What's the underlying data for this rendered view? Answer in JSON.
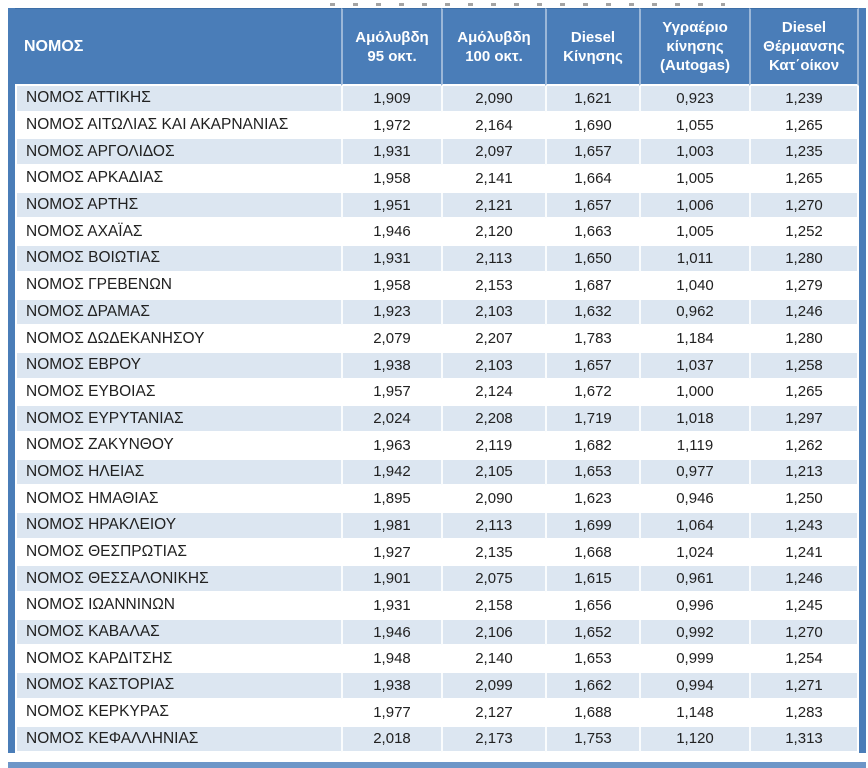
{
  "colors": {
    "header_bg": "#4a7db8",
    "row_alt_bg": "#dce6f1",
    "row_bg": "#ffffff",
    "text": "#212121",
    "header_text": "#ffffff"
  },
  "table": {
    "columns": [
      {
        "key": "nomos",
        "label": "ΝΟΜΟΣ"
      },
      {
        "key": "u95",
        "label": "Αμόλυβδη\n95 οκτ."
      },
      {
        "key": "u100",
        "label": "Αμόλυβδη\n100 οκτ."
      },
      {
        "key": "diesel",
        "label": "Diesel\nΚίνησης"
      },
      {
        "key": "autogas",
        "label": "Υγραέριο\nκίνησης\n(Autogas)"
      },
      {
        "key": "heating",
        "label": "Diesel\nΘέρμανσης\nΚατ΄οίκον"
      }
    ],
    "rows": [
      [
        "ΝΟΜΟΣ ΑΤΤΙΚΗΣ",
        "1,909",
        "2,090",
        "1,621",
        "0,923",
        "1,239"
      ],
      [
        "ΝΟΜΟΣ ΑΙΤΩΛΙΑΣ ΚΑΙ ΑΚΑΡΝΑΝΙΑΣ",
        "1,972",
        "2,164",
        "1,690",
        "1,055",
        "1,265"
      ],
      [
        "ΝΟΜΟΣ ΑΡΓΟΛΙΔΟΣ",
        "1,931",
        "2,097",
        "1,657",
        "1,003",
        "1,235"
      ],
      [
        "ΝΟΜΟΣ ΑΡΚΑΔΙΑΣ",
        "1,958",
        "2,141",
        "1,664",
        "1,005",
        "1,265"
      ],
      [
        "ΝΟΜΟΣ ΑΡΤΗΣ",
        "1,951",
        "2,121",
        "1,657",
        "1,006",
        "1,270"
      ],
      [
        "ΝΟΜΟΣ ΑΧΑΪΑΣ",
        "1,946",
        "2,120",
        "1,663",
        "1,005",
        "1,252"
      ],
      [
        "ΝΟΜΟΣ ΒΟΙΩΤΙΑΣ",
        "1,931",
        "2,113",
        "1,650",
        "1,011",
        "1,280"
      ],
      [
        "ΝΟΜΟΣ ΓΡΕΒΕΝΩΝ",
        "1,958",
        "2,153",
        "1,687",
        "1,040",
        "1,279"
      ],
      [
        "ΝΟΜΟΣ ΔΡΑΜΑΣ",
        "1,923",
        "2,103",
        "1,632",
        "0,962",
        "1,246"
      ],
      [
        "ΝΟΜΟΣ ΔΩΔΕΚΑΝΗΣΟΥ",
        "2,079",
        "2,207",
        "1,783",
        "1,184",
        "1,280"
      ],
      [
        "ΝΟΜΟΣ ΕΒΡΟΥ",
        "1,938",
        "2,103",
        "1,657",
        "1,037",
        "1,258"
      ],
      [
        "ΝΟΜΟΣ ΕΥΒΟΙΑΣ",
        "1,957",
        "2,124",
        "1,672",
        "1,000",
        "1,265"
      ],
      [
        "ΝΟΜΟΣ ΕΥΡΥΤΑΝΙΑΣ",
        "2,024",
        "2,208",
        "1,719",
        "1,018",
        "1,297"
      ],
      [
        "ΝΟΜΟΣ ΖΑΚΥΝΘΟΥ",
        "1,963",
        "2,119",
        "1,682",
        "1,119",
        "1,262"
      ],
      [
        "ΝΟΜΟΣ ΗΛΕΙΑΣ",
        "1,942",
        "2,105",
        "1,653",
        "0,977",
        "1,213"
      ],
      [
        "ΝΟΜΟΣ ΗΜΑΘΙΑΣ",
        "1,895",
        "2,090",
        "1,623",
        "0,946",
        "1,250"
      ],
      [
        "ΝΟΜΟΣ ΗΡΑΚΛΕΙΟΥ",
        "1,981",
        "2,113",
        "1,699",
        "1,064",
        "1,243"
      ],
      [
        "ΝΟΜΟΣ ΘΕΣΠΡΩΤΙΑΣ",
        "1,927",
        "2,135",
        "1,668",
        "1,024",
        "1,241"
      ],
      [
        "ΝΟΜΟΣ ΘΕΣΣΑΛΟΝΙΚΗΣ",
        "1,901",
        "2,075",
        "1,615",
        "0,961",
        "1,246"
      ],
      [
        "ΝΟΜΟΣ ΙΩΑΝΝΙΝΩΝ",
        "1,931",
        "2,158",
        "1,656",
        "0,996",
        "1,245"
      ],
      [
        "ΝΟΜΟΣ ΚΑΒΑΛΑΣ",
        "1,946",
        "2,106",
        "1,652",
        "0,992",
        "1,270"
      ],
      [
        "ΝΟΜΟΣ ΚΑΡΔΙΤΣΗΣ",
        "1,948",
        "2,140",
        "1,653",
        "0,999",
        "1,254"
      ],
      [
        "ΝΟΜΟΣ ΚΑΣΤΟΡΙΑΣ",
        "1,938",
        "2,099",
        "1,662",
        "0,994",
        "1,271"
      ],
      [
        "ΝΟΜΟΣ ΚΕΡΚΥΡΑΣ",
        "1,977",
        "2,127",
        "1,688",
        "1,148",
        "1,283"
      ],
      [
        "ΝΟΜΟΣ ΚΕΦΑΛΛΗΝΙΑΣ",
        "2,018",
        "2,173",
        "1,753",
        "1,120",
        "1,313"
      ]
    ]
  }
}
